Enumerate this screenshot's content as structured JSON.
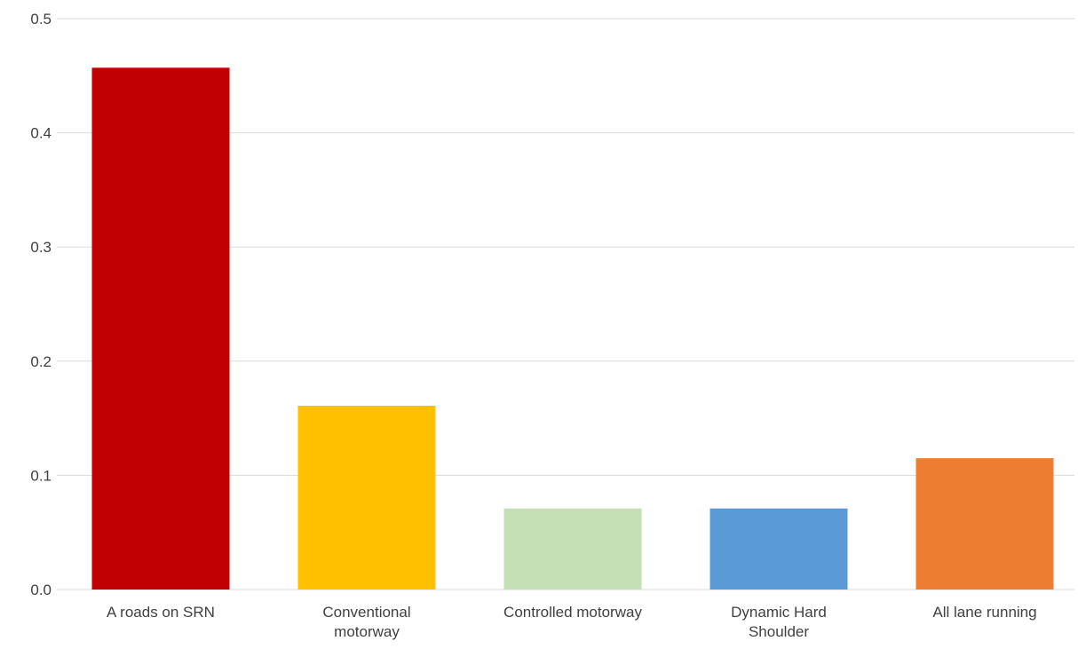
{
  "chart_data": {
    "type": "bar",
    "title": "",
    "xlabel": "",
    "ylabel": "",
    "ylim": [
      0,
      0.5
    ],
    "y_ticks": [
      "0.0",
      "0.1",
      "0.2",
      "0.3",
      "0.4",
      "0.5"
    ],
    "grid": true,
    "legend": "none",
    "categories": [
      "A roads on SRN",
      "Conventional motorway",
      "Controlled motorway",
      "Dynamic Hard Shoulder",
      "All lane running"
    ],
    "category_lines": [
      [
        "A roads on SRN"
      ],
      [
        "Conventional",
        "motorway"
      ],
      [
        "Controlled motorway"
      ],
      [
        "Dynamic Hard",
        "Shoulder"
      ],
      [
        "All lane running"
      ]
    ],
    "values": [
      0.457,
      0.161,
      0.071,
      0.071,
      0.115
    ],
    "colors": [
      "#c00000",
      "#ffc000",
      "#c5e0b4",
      "#5b9bd5",
      "#ed7d31"
    ]
  }
}
